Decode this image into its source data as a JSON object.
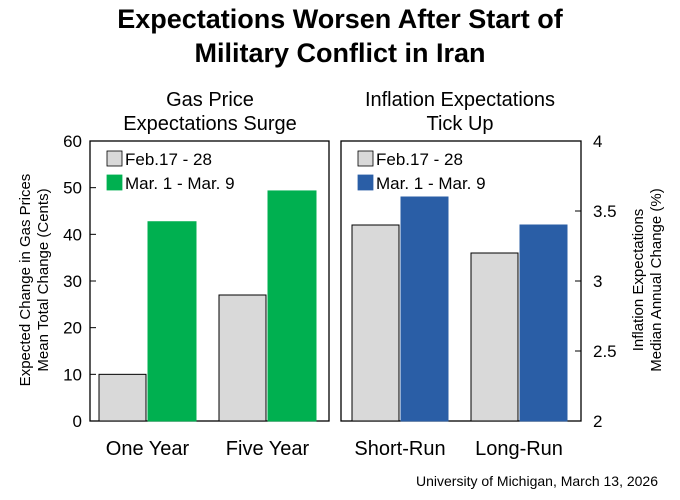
{
  "title_line1": "Expectations Worsen After Start of",
  "title_line2": "Military Conflict in Iran",
  "source": "University of Michigan, March 13, 2026",
  "chart_data": [
    {
      "type": "bar",
      "title_line1": "Gas Price",
      "title_line2": "Expectations Surge",
      "ylabel_line1": "Expected Change in Gas Prices",
      "ylabel_line2": "Mean Total Change (Cents)",
      "categories": [
        "One Year",
        "Five Year"
      ],
      "series": [
        {
          "name": "Feb.17 - 28",
          "color": "#d9d9d9",
          "values": [
            10,
            27
          ]
        },
        {
          "name": "Mar. 1 - Mar. 9",
          "color": "#00b050",
          "values": [
            42.7,
            49.3
          ]
        }
      ],
      "ylim": [
        0,
        60
      ],
      "yticks": [
        "0",
        "10",
        "20",
        "30",
        "40",
        "50",
        "60"
      ],
      "y_axis_side": "left",
      "legend": "top-left",
      "grid": false
    },
    {
      "type": "bar",
      "title_line1": "Inflation Expectations",
      "title_line2": "Tick Up",
      "ylabel_line1": "Inflation Expectations",
      "ylabel_line2": "Median Annual Change (%)",
      "categories": [
        "Short-Run",
        "Long-Run"
      ],
      "series": [
        {
          "name": "Feb.17 - 28",
          "color": "#d9d9d9",
          "values": [
            3.4,
            3.2
          ]
        },
        {
          "name": "Mar. 1 - Mar. 9",
          "color": "#2a5ea6",
          "values": [
            3.6,
            3.4
          ]
        }
      ],
      "ylim": [
        2,
        4
      ],
      "yticks": [
        "2",
        "2.5",
        "3",
        "3.5",
        "4"
      ],
      "y_axis_side": "right",
      "legend": "top-left",
      "grid": false
    }
  ]
}
